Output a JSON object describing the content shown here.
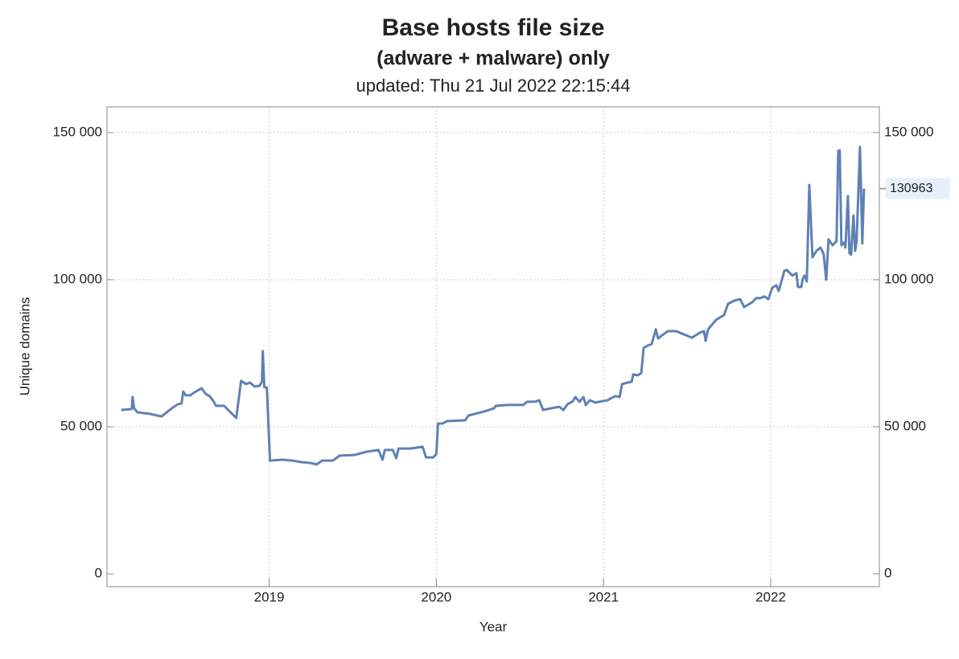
{
  "chart_data": {
    "type": "line",
    "title": "Base hosts file size",
    "subtitle": "(adware + malware) only",
    "updated": "updated: Thu 21 Jul 2022 22:15:44",
    "x_label": "Year",
    "y_label": "Unique domains",
    "xlim": [
      2018.03,
      2022.65
    ],
    "ylim": [
      -4370,
      158740
    ],
    "xticks": [
      2019,
      2020,
      2021,
      2022
    ],
    "yticks": [
      0,
      {
        "value": 50000,
        "label": "50 000"
      },
      {
        "value": 100000,
        "label": "100 000"
      },
      {
        "value": 150000,
        "label": "150 000"
      }
    ],
    "grid": true,
    "x": [
      2018.115,
      2018.178,
      2018.183,
      2018.192,
      2018.212,
      2018.284,
      2018.356,
      2018.394,
      2018.418,
      2018.452,
      2018.476,
      2018.486,
      2018.5,
      2018.529,
      2018.553,
      2018.596,
      2018.62,
      2018.644,
      2018.663,
      2018.683,
      2018.731,
      2018.755,
      2018.803,
      2018.832,
      2018.861,
      2018.885,
      2018.913,
      2018.942,
      2018.957,
      2018.962,
      2018.971,
      2018.986,
      2019.005,
      2019.077,
      2019.139,
      2019.188,
      2019.245,
      2019.284,
      2019.317,
      2019.38,
      2019.423,
      2019.51,
      2019.582,
      2019.654,
      2019.678,
      2019.692,
      2019.74,
      2019.76,
      2019.774,
      2019.846,
      2019.918,
      2019.938,
      2019.981,
      2020.0,
      2020.01,
      2020.038,
      2020.063,
      2020.173,
      2020.192,
      2020.231,
      2020.288,
      2020.346,
      2020.356,
      2020.423,
      2020.519,
      2020.543,
      2020.591,
      2020.615,
      2020.639,
      2020.688,
      2020.736,
      2020.76,
      2020.784,
      2020.817,
      2020.832,
      2020.856,
      2020.88,
      2020.894,
      2020.918,
      2020.952,
      2020.976,
      2021.024,
      2021.048,
      2021.072,
      2021.096,
      2021.111,
      2021.144,
      2021.168,
      2021.178,
      2021.207,
      2021.226,
      2021.24,
      2021.264,
      2021.288,
      2021.313,
      2021.327,
      2021.346,
      2021.385,
      2021.433,
      2021.481,
      2021.529,
      2021.577,
      2021.601,
      2021.611,
      2021.625,
      2021.649,
      2021.673,
      2021.721,
      2021.745,
      2021.784,
      2021.817,
      2021.841,
      2021.889,
      2021.913,
      2021.938,
      2021.962,
      2021.986,
      2022.01,
      2022.034,
      2022.048,
      2022.067,
      2022.082,
      2022.096,
      2022.13,
      2022.154,
      2022.163,
      2022.183,
      2022.192,
      2022.202,
      2022.216,
      2022.231,
      2022.25,
      2022.274,
      2022.298,
      2022.317,
      2022.332,
      2022.346,
      2022.37,
      2022.394,
      2022.404,
      2022.413,
      2022.423,
      2022.438,
      2022.447,
      2022.462,
      2022.471,
      2022.481,
      2022.495,
      2022.505,
      2022.514,
      2022.534,
      2022.548,
      2022.558
    ],
    "series": [
      {
        "color": "#5e81b5",
        "values": [
          55700,
          56000,
          60100,
          56300,
          54900,
          54400,
          53500,
          55200,
          56300,
          57600,
          57900,
          62000,
          60700,
          60700,
          61700,
          63100,
          61200,
          60400,
          59000,
          57100,
          57100,
          55700,
          53000,
          65600,
          64500,
          65000,
          63700,
          63900,
          65300,
          75700,
          63400,
          63400,
          38500,
          38800,
          38500,
          38000,
          37700,
          37200,
          38500,
          38500,
          40200,
          40400,
          41500,
          42100,
          38800,
          42100,
          42100,
          39300,
          42600,
          42600,
          43200,
          39600,
          39600,
          40700,
          51100,
          51100,
          51900,
          52200,
          53800,
          54400,
          55200,
          56300,
          57100,
          57400,
          57400,
          58500,
          58500,
          59000,
          55700,
          56300,
          56800,
          55700,
          57600,
          58700,
          60100,
          58500,
          60100,
          57400,
          59000,
          58200,
          58500,
          59000,
          59800,
          60400,
          60100,
          64500,
          65000,
          65300,
          67800,
          67500,
          68300,
          76800,
          77600,
          78100,
          83100,
          80000,
          80900,
          82500,
          82500,
          81400,
          80300,
          82000,
          82500,
          79200,
          83100,
          84700,
          86300,
          88000,
          91800,
          92900,
          93400,
          90700,
          92300,
          93700,
          93700,
          94300,
          93400,
          97300,
          98100,
          96200,
          100000,
          103000,
          103300,
          101400,
          102200,
          97500,
          97500,
          100300,
          101400,
          99400,
          132200,
          107600,
          109800,
          110900,
          108700,
          100000,
          113700,
          111700,
          113100,
          143700,
          144000,
          111700,
          112600,
          110900,
          128400,
          109000,
          108500,
          121800,
          109800,
          113100,
          145100,
          112300,
          130963
        ]
      }
    ]
  }
}
